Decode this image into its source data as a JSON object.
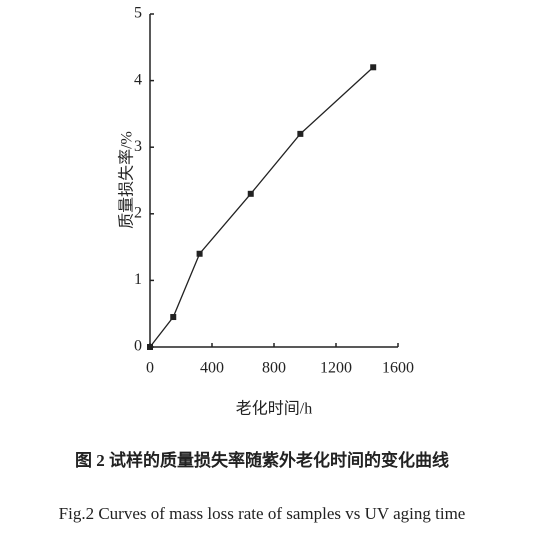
{
  "chart_data": {
    "type": "line",
    "x_label": "老化时间/h",
    "y_label": "质量损失率/%",
    "caption": "图 2  试样的质量损失率随紫外老化时间的变化曲线",
    "caption_en": "Fig.2   Curves of mass loss rate of samples vs UV aging time",
    "x": [
      0,
      150,
      320,
      650,
      970,
      1440
    ],
    "series": [
      {
        "color": "#222222",
        "values": [
          0,
          0.45,
          1.4,
          2.3,
          3.2,
          4.2
        ]
      }
    ],
    "xlim": [
      0,
      1600
    ],
    "xticks": [
      0,
      400,
      800,
      1200,
      1600
    ],
    "ylim": [
      0,
      5
    ],
    "yticks": [
      0,
      1,
      2,
      3,
      4,
      5
    ],
    "grid": false
  }
}
